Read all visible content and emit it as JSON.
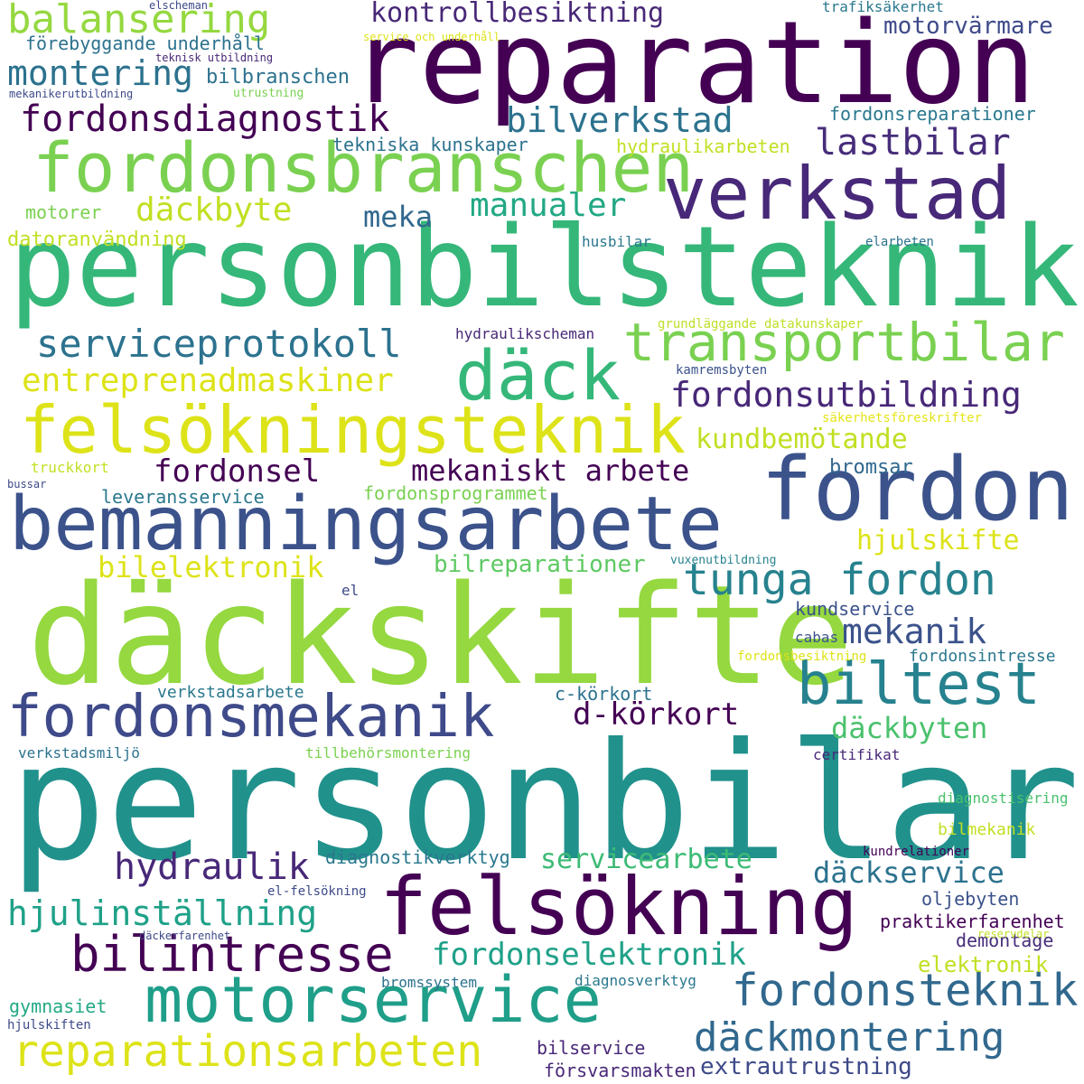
{
  "background": "#ffffff",
  "words": [
    {
      "text": "personbilar",
      "color": "#21918c"
    },
    {
      "text": "däckskifte",
      "color": "#95d840"
    },
    {
      "text": "personbilsteknik",
      "color": "#35b779"
    },
    {
      "text": "reparation",
      "color": "#440154"
    },
    {
      "text": "bemanningsarbete",
      "color": "#3b528b"
    },
    {
      "text": "felsökning",
      "color": "#440154"
    },
    {
      "text": "fordon",
      "color": "#3b528b"
    },
    {
      "text": "felsökningsteknik",
      "color": "#dde318"
    },
    {
      "text": "fordonsbranschen",
      "color": "#7ad151"
    },
    {
      "text": "verkstad",
      "color": "#482878"
    },
    {
      "text": "motorservice",
      "color": "#1f9e89"
    },
    {
      "text": "fordonsmekanik",
      "color": "#3e4a89"
    },
    {
      "text": "däck",
      "color": "#35b779"
    },
    {
      "text": "transportbilar",
      "color": "#7ad151"
    },
    {
      "text": "biltest",
      "color": "#26828e"
    },
    {
      "text": "reparationsarbeten",
      "color": "#dde318"
    },
    {
      "text": "fordonsteknik",
      "color": "#31688e"
    },
    {
      "text": "bilintresse",
      "color": "#440154"
    },
    {
      "text": "däckmontering",
      "color": "#31688e"
    },
    {
      "text": "tunga fordon",
      "color": "#26828e"
    },
    {
      "text": "balansering",
      "color": "#95d840"
    },
    {
      "text": "fordonsdiagnostik",
      "color": "#440154"
    },
    {
      "text": "serviceprotokoll",
      "color": "#2c728e"
    },
    {
      "text": "fordonsutbildning",
      "color": "#482878"
    },
    {
      "text": "lastbilar",
      "color": "#472d7b"
    },
    {
      "text": "hydraulik",
      "color": "#482878"
    },
    {
      "text": "mekanik",
      "color": "#3b528b"
    },
    {
      "text": "montering",
      "color": "#2c728e"
    },
    {
      "text": "bilverkstad",
      "color": "#2c728e"
    },
    {
      "text": "hjulinställning",
      "color": "#1fa188"
    },
    {
      "text": "fordonselektronik",
      "color": "#1fa188"
    },
    {
      "text": "däckbyte",
      "color": "#c2df23"
    },
    {
      "text": "manualer",
      "color": "#22a884"
    },
    {
      "text": "entreprenadmaskiner",
      "color": "#dde318"
    },
    {
      "text": "kontrollbesiktning",
      "color": "#482878"
    },
    {
      "text": "d-körkort",
      "color": "#440154"
    },
    {
      "text": "däckbyten",
      "color": "#4ac16d"
    },
    {
      "text": "mekaniskt arbete",
      "color": "#440154"
    },
    {
      "text": "fordonsel",
      "color": "#440154"
    },
    {
      "text": "kundbemötande",
      "color": "#c2df23"
    },
    {
      "text": "servicearbete",
      "color": "#3cbb75"
    },
    {
      "text": "däckservice",
      "color": "#2c728e"
    },
    {
      "text": "hjulskifte",
      "color": "#dde318"
    },
    {
      "text": "bilelektronik",
      "color": "#dde318"
    },
    {
      "text": "meka",
      "color": "#31688e"
    },
    {
      "text": "motorvärmare",
      "color": "#3e4a89"
    },
    {
      "text": "bilreparationer",
      "color": "#5ec962"
    },
    {
      "text": "elektronik",
      "color": "#c2df23"
    },
    {
      "text": "extrautrustning",
      "color": "#3e4a89"
    },
    {
      "text": "bromsar",
      "color": "#31688e"
    },
    {
      "text": "förebyggande underhåll",
      "color": "#2c728e"
    },
    {
      "text": "bilbranschen",
      "color": "#2c728e"
    },
    {
      "text": "fordonsreparationer",
      "color": "#2a788e"
    },
    {
      "text": "tekniska kunskaper",
      "color": "#2c728e"
    },
    {
      "text": "hydraulikarbeten",
      "color": "#c2df23"
    },
    {
      "text": "motorer",
      "color": "#7ad151"
    },
    {
      "text": "datoranvändning",
      "color": "#c2df23"
    },
    {
      "text": "leveransservice",
      "color": "#2a788e"
    },
    {
      "text": "fordonsprogrammet",
      "color": "#7ad151"
    },
    {
      "text": "verkstadsarbete",
      "color": "#2a788e"
    },
    {
      "text": "c-körkort",
      "color": "#2c728e"
    },
    {
      "text": "kundservice",
      "color": "#3b528b"
    },
    {
      "text": "fordonsintresse",
      "color": "#2a788e"
    },
    {
      "text": "diagnostikverktyg",
      "color": "#2a788e"
    },
    {
      "text": "oljebyten",
      "color": "#3b528b"
    },
    {
      "text": "praktikerfarenhet",
      "color": "#440154"
    },
    {
      "text": "demontage",
      "color": "#472d7b"
    },
    {
      "text": "gymnasiet",
      "color": "#22a884"
    },
    {
      "text": "bilservice",
      "color": "#482878"
    },
    {
      "text": "försvarsmakten",
      "color": "#482878"
    },
    {
      "text": "trafiksäkerhet",
      "color": "#2a788e"
    },
    {
      "text": "elscheman",
      "color": "#3e4a89"
    },
    {
      "text": "service och underhåll",
      "color": "#dde318"
    },
    {
      "text": "teknisk utbildning",
      "color": "#482878"
    },
    {
      "text": "mekanikerutbildning",
      "color": "#3e4a89"
    },
    {
      "text": "utrustning",
      "color": "#7ad151"
    },
    {
      "text": "husbilar",
      "color": "#2a788e"
    },
    {
      "text": "elarbeten",
      "color": "#2c728e"
    },
    {
      "text": "grundläggande datakunskaper",
      "color": "#bddf26"
    },
    {
      "text": "hydraulikscheman",
      "color": "#482878"
    },
    {
      "text": "kamremsbyten",
      "color": "#3b528b"
    },
    {
      "text": "säkerhetsföreskrifter",
      "color": "#e5e419"
    },
    {
      "text": "truckkort",
      "color": "#c2df23"
    },
    {
      "text": "bussar",
      "color": "#3e4a89"
    },
    {
      "text": "vuxenutbildning",
      "color": "#26828e"
    },
    {
      "text": "el",
      "color": "#3e4a89"
    },
    {
      "text": "cabas",
      "color": "#3b528b"
    },
    {
      "text": "fordonsbesiktning",
      "color": "#dde318"
    },
    {
      "text": "verkstadsmiljö",
      "color": "#2c728e"
    },
    {
      "text": "tillbehörsmontering",
      "color": "#7ad151"
    },
    {
      "text": "certifikat",
      "color": "#482878"
    },
    {
      "text": "diagnostisering",
      "color": "#4ac16d"
    },
    {
      "text": "bilmekanik",
      "color": "#c2df23"
    },
    {
      "text": "kundrelationer",
      "color": "#440154"
    },
    {
      "text": "el-felsökning",
      "color": "#3e4a89"
    },
    {
      "text": "däckerfarenhet",
      "color": "#3e4a89"
    },
    {
      "text": "reservdelar",
      "color": "#bddf26"
    },
    {
      "text": "bromssystem",
      "color": "#2c728e"
    },
    {
      "text": "diagnosverktyg",
      "color": "#2a788e"
    },
    {
      "text": "hjulskiften",
      "color": "#3e4a89"
    }
  ]
}
